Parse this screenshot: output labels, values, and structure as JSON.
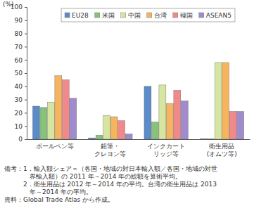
{
  "chart_data": {
    "type": "bar",
    "ylabel": "(%)",
    "categories": [
      "ボールペン等",
      "鉛筆・\nクレヨン等",
      "インクカート\nリッジ等",
      "衛生用品\n(オムツ等)"
    ],
    "series": [
      {
        "name": "EU28",
        "color": "#5b8bc9",
        "values": [
          25,
          1,
          40,
          0.3
        ]
      },
      {
        "name": "米国",
        "color": "#86c27a",
        "values": [
          24,
          3,
          13,
          0.3
        ]
      },
      {
        "name": "中国",
        "color": "#d6e6a0",
        "values": [
          28,
          18,
          41,
          58
        ]
      },
      {
        "name": "台湾",
        "color": "#f7b45e",
        "values": [
          48,
          17,
          27,
          58
        ]
      },
      {
        "name": "韓国",
        "color": "#f08a8a",
        "values": [
          45,
          14,
          37,
          21
        ]
      },
      {
        "name": "ASEAN5",
        "color": "#a08ccc",
        "values": [
          31,
          4,
          29,
          21
        ]
      }
    ],
    "ylim": [
      0,
      100
    ],
    "yticks": [
      0,
      10,
      20,
      30,
      40,
      50,
      60,
      70,
      80,
      90,
      100
    ],
    "grid": false,
    "legend": "top",
    "notes": [
      "備考：1．輸入額シェア＝（各国・地域の対日本輸入額／各国・地域の対世",
      "　　　　界輸入額）の 2011 年～2014 年の総額を算術平均。",
      "　　　2．衛生用品は 2012 年～2014 年の平均。台湾の衛生用品は 2013",
      "　　　　年～2014 年の平均。",
      "資料：Global Trade Atlas から作成。"
    ]
  }
}
